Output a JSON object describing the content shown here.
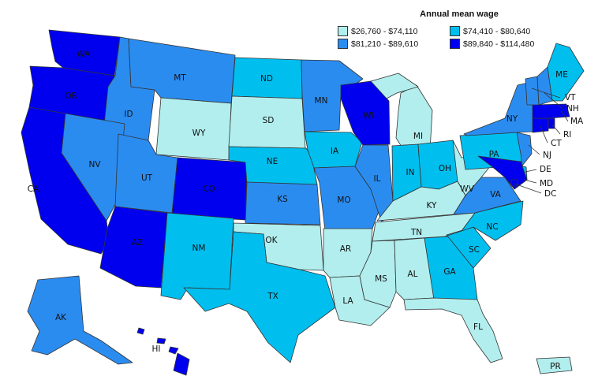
{
  "legend": {
    "title": "Annual mean wage",
    "bins": [
      {
        "label": "$26,760 - $74,110",
        "color": "#b2eeee"
      },
      {
        "label": "$74,410 - $80,640",
        "color": "#00bfef"
      },
      {
        "label": "$81,210 - $89,610",
        "color": "#2b8cf0"
      },
      {
        "label": "$89,840 - $114,480",
        "color": "#0000ee"
      }
    ]
  },
  "states": [
    {
      "abbr": "WA",
      "bin": 3
    },
    {
      "abbr": "OR",
      "bin": 3
    },
    {
      "abbr": "CA",
      "bin": 3
    },
    {
      "abbr": "ID",
      "bin": 2
    },
    {
      "abbr": "NV",
      "bin": 2
    },
    {
      "abbr": "MT",
      "bin": 2
    },
    {
      "abbr": "WY",
      "bin": 0
    },
    {
      "abbr": "UT",
      "bin": 2
    },
    {
      "abbr": "CO",
      "bin": 3
    },
    {
      "abbr": "AZ",
      "bin": 3
    },
    {
      "abbr": "NM",
      "bin": 1
    },
    {
      "abbr": "ND",
      "bin": 1
    },
    {
      "abbr": "SD",
      "bin": 0
    },
    {
      "abbr": "NE",
      "bin": 1
    },
    {
      "abbr": "KS",
      "bin": 2
    },
    {
      "abbr": "OK",
      "bin": 0
    },
    {
      "abbr": "TX",
      "bin": 1
    },
    {
      "abbr": "MN",
      "bin": 2
    },
    {
      "abbr": "IA",
      "bin": 1
    },
    {
      "abbr": "MO",
      "bin": 2
    },
    {
      "abbr": "AR",
      "bin": 0
    },
    {
      "abbr": "LA",
      "bin": 0
    },
    {
      "abbr": "WI",
      "bin": 3
    },
    {
      "abbr": "IL",
      "bin": 2
    },
    {
      "abbr": "MI",
      "bin": 0
    },
    {
      "abbr": "IN",
      "bin": 1
    },
    {
      "abbr": "OH",
      "bin": 1
    },
    {
      "abbr": "KY",
      "bin": 0
    },
    {
      "abbr": "TN",
      "bin": 0
    },
    {
      "abbr": "MS",
      "bin": 0
    },
    {
      "abbr": "AL",
      "bin": 0
    },
    {
      "abbr": "GA",
      "bin": 1
    },
    {
      "abbr": "FL",
      "bin": 0
    },
    {
      "abbr": "SC",
      "bin": 1
    },
    {
      "abbr": "NC",
      "bin": 1
    },
    {
      "abbr": "VA",
      "bin": 2
    },
    {
      "abbr": "WV",
      "bin": 0
    },
    {
      "abbr": "PA",
      "bin": 1
    },
    {
      "abbr": "NY",
      "bin": 2
    },
    {
      "abbr": "NJ",
      "bin": 2
    },
    {
      "abbr": "DE",
      "bin": 1
    },
    {
      "abbr": "MD",
      "bin": 3
    },
    {
      "abbr": "DC",
      "bin": 3
    },
    {
      "abbr": "CT",
      "bin": 3
    },
    {
      "abbr": "RI",
      "bin": 3
    },
    {
      "abbr": "MA",
      "bin": 3
    },
    {
      "abbr": "VT",
      "bin": 2
    },
    {
      "abbr": "NH",
      "bin": 2
    },
    {
      "abbr": "ME",
      "bin": 1
    },
    {
      "abbr": "AK",
      "bin": 2
    },
    {
      "abbr": "HI",
      "bin": 3
    },
    {
      "abbr": "PR",
      "bin": 0
    }
  ]
}
